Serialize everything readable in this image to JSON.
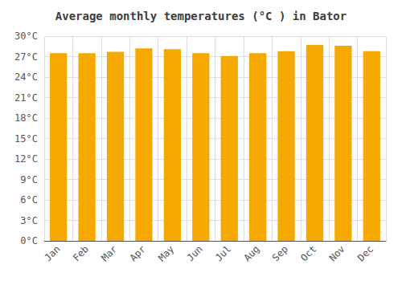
{
  "chart_data": {
    "type": "bar",
    "title": "Average monthly temperatures (°C ) in Bator",
    "categories": [
      "Jan",
      "Feb",
      "Mar",
      "Apr",
      "May",
      "Jun",
      "Jul",
      "Aug",
      "Sep",
      "Oct",
      "Nov",
      "Dec"
    ],
    "values": [
      27.5,
      27.5,
      27.7,
      28.2,
      28.1,
      27.5,
      27.1,
      27.5,
      27.8,
      28.7,
      28.6,
      27.8
    ],
    "color": "#F5A800",
    "ylim": [
      0,
      30
    ],
    "yticks": [
      {
        "value": 0,
        "label": "0°C"
      },
      {
        "value": 3,
        "label": "3°C"
      },
      {
        "value": 6,
        "label": "6°C"
      },
      {
        "value": 9,
        "label": "9°C"
      },
      {
        "value": 12,
        "label": "12°C"
      },
      {
        "value": 15,
        "label": "15°C"
      },
      {
        "value": 18,
        "label": "18°C"
      },
      {
        "value": 21,
        "label": "21°C"
      },
      {
        "value": 24,
        "label": "24°C"
      },
      {
        "value": 27,
        "label": "27°C"
      },
      {
        "value": 30,
        "label": "30°C"
      }
    ],
    "grid": true
  }
}
